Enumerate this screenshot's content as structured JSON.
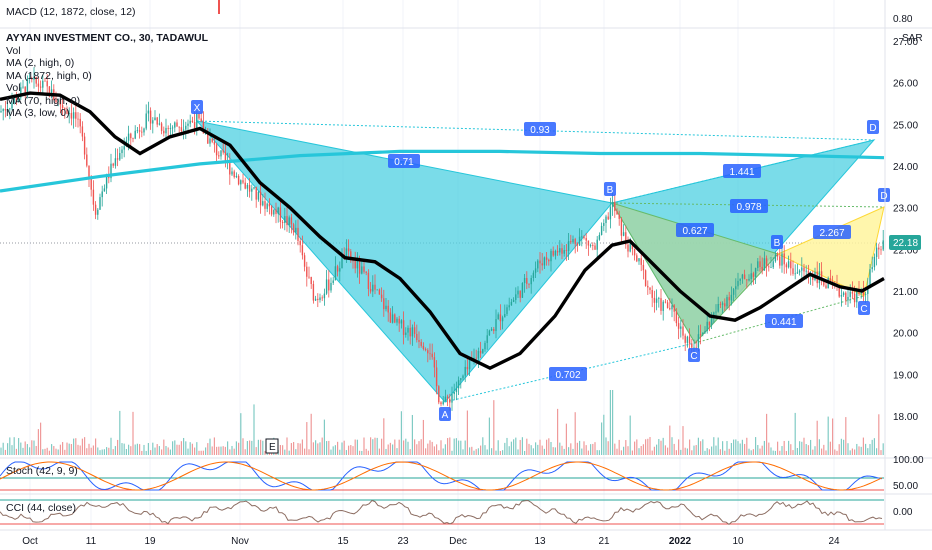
{
  "header": {
    "macd_label": "MACD (12, 1872, close, 12)",
    "macd_value": "0.80"
  },
  "legend": {
    "title": "AYYAN INVESTMENT CO., 30, TADAWUL",
    "items": [
      "Vol",
      "MA (2, high, 0)",
      "MA (1872, high, 0)",
      "Vol",
      "MA (70, high, 0)",
      "MA (3, low, 0)"
    ]
  },
  "currency": "SAR",
  "last_price": "22.18",
  "earnings_marker": "E",
  "stoch": {
    "label": "Stoch (42, 9, 9)",
    "ticks": [
      "100.00",
      "50.00",
      "0.00"
    ]
  },
  "cci": {
    "label": "CCI (44, close)",
    "ticks": [
      "0.00"
    ]
  },
  "chart_data": {
    "type": "line",
    "ylim": [
      17.2,
      27.8
    ],
    "y_ticks": [
      "18.00",
      "19.00",
      "20.00",
      "21.00",
      "22.00",
      "23.00",
      "24.00",
      "25.00",
      "26.00",
      "27.00"
    ],
    "x_ticks": [
      "Oct",
      "11",
      "19",
      "Nov",
      "15",
      "23",
      "Dec",
      "13",
      "21",
      "2022",
      "10",
      "24"
    ],
    "pattern_points": [
      {
        "name": "X",
        "t": "19-Oct",
        "price": 25.1
      },
      {
        "name": "A",
        "t": "late Nov",
        "price": 18.3
      },
      {
        "name": "B",
        "t": "21-Dec",
        "price": 23.1
      },
      {
        "name": "C",
        "t": "early Jan",
        "price": 19.7
      },
      {
        "name": "D",
        "t": "end Jan",
        "price": 24.6
      },
      {
        "name": "B",
        "t": "mid Jan",
        "price": 21.8
      },
      {
        "name": "C",
        "t": "late Jan",
        "price": 20.9
      },
      {
        "name": "D",
        "t": "end Jan",
        "price": 23.0
      }
    ],
    "ratios": [
      "0.93",
      "0.71",
      "1.441",
      "0.978",
      "0.627",
      "2.267",
      "0.702",
      "0.441"
    ],
    "series": [
      {
        "name": "MA (1872, high, 0)",
        "color": "#26c6da"
      },
      {
        "name": "MA (70, high, 0)",
        "color": "#000000"
      }
    ]
  }
}
